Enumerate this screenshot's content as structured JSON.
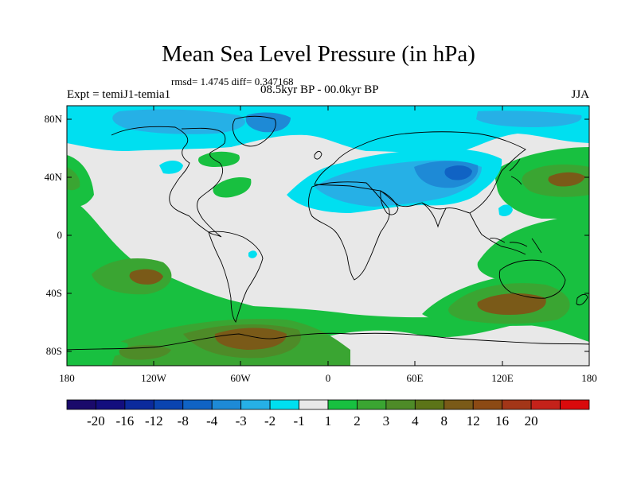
{
  "title": "Mean Sea Level Pressure (in hPa)",
  "stats": "rmsd= 1.4745 diff= 0.347168",
  "left_label": "Expt = temiJ1-temia1",
  "center_label": "08.5kyr BP - 00.0kyr BP",
  "right_label": "JJA",
  "lat_labels": [
    "80N",
    "40N",
    "0",
    "40S",
    "80S"
  ],
  "lon_labels": [
    "180",
    "120W",
    "60W",
    "0",
    "60E",
    "120E",
    "180"
  ],
  "colorbar": {
    "colors": [
      "#1a0a6b",
      "#130e7e",
      "#0b2a9c",
      "#0a44b0",
      "#1063c4",
      "#1e8ad6",
      "#26b0e6",
      "#00dff0",
      "#e8e8e8",
      "#18c040",
      "#3aa532",
      "#4e8b28",
      "#5c7418",
      "#7a5a18",
      "#8c4a14",
      "#a33618",
      "#c4221a",
      "#da0a0c"
    ],
    "labels": [
      "-20",
      "-16",
      "-12",
      "-8",
      "-4",
      "-3",
      "-2",
      "-1",
      "1",
      "2",
      "3",
      "4",
      "8",
      "12",
      "16",
      "20"
    ]
  },
  "field_colors": {
    "ocean_neutral": "#e8e8e8",
    "positive_1": "#18c040",
    "positive_3": "#3aa532",
    "positive_4": "#4e8b28",
    "positive_8": "#7a5a18",
    "positive_12": "#8c4a14",
    "negative_1": "#00dff0",
    "negative_2": "#26b0e6",
    "negative_3": "#1e8ad6",
    "negative_4": "#1063c4"
  },
  "map_data": {
    "variable": "Mean Sea Level Pressure difference",
    "units": "hPa",
    "season": "JJA",
    "lat_range": [
      -90,
      90
    ],
    "lon_range": [
      -180,
      180
    ]
  }
}
